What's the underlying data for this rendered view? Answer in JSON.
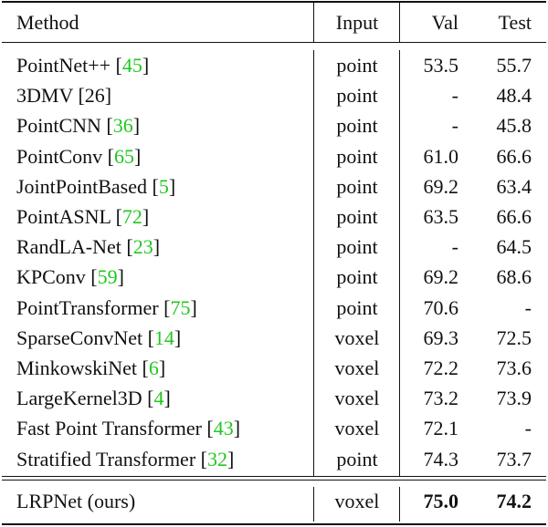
{
  "header": {
    "method": "Method",
    "input": "Input",
    "val": "Val",
    "test": "Test"
  },
  "rows": [
    {
      "method": "PointNet++",
      "cite": [
        "[",
        "45",
        "]"
      ],
      "input": "point",
      "val": "53.5",
      "test": "55.7"
    },
    {
      "method": "3DMV [26]",
      "input": "point",
      "val": "-",
      "test": "48.4"
    },
    {
      "method": "PointCNN",
      "cite": [
        "[",
        "36",
        "]"
      ],
      "input": "point",
      "val": "-",
      "test": "45.8"
    },
    {
      "method": "PointConv",
      "cite": [
        "[",
        "65",
        "]"
      ],
      "input": "point",
      "val": "61.0",
      "test": "66.6"
    },
    {
      "method": "JointPointBased",
      "cite": [
        "[",
        "5",
        "]"
      ],
      "input": "point",
      "val": "69.2",
      "test": "63.4"
    },
    {
      "method": "PointASNL",
      "cite": [
        "[",
        "72",
        "]"
      ],
      "input": "point",
      "val": "63.5",
      "test": "66.6"
    },
    {
      "method": "RandLA-Net",
      "cite": [
        "[",
        "23",
        "]"
      ],
      "input": "point",
      "val": "-",
      "test": "64.5"
    },
    {
      "method": "KPConv",
      "cite": [
        "[",
        "59",
        "]"
      ],
      "input": "point",
      "val": "69.2",
      "test": "68.6"
    },
    {
      "method": "PointTransformer",
      "cite": [
        "[",
        "75",
        "]"
      ],
      "input": "point",
      "val": "70.6",
      "test": "-"
    },
    {
      "method": "SparseConvNet",
      "cite": [
        "[",
        "14",
        "]"
      ],
      "input": "voxel",
      "val": "69.3",
      "test": "72.5"
    },
    {
      "method": "MinkowskiNet",
      "cite": [
        "[",
        "6",
        "]"
      ],
      "input": "voxel",
      "val": "72.2",
      "test": "73.6"
    },
    {
      "method": "LargeKernel3D",
      "cite": [
        "[",
        "4",
        "]"
      ],
      "input": "voxel",
      "val": "73.2",
      "test": "73.9"
    },
    {
      "method": "Fast Point Transformer",
      "cite": [
        "[",
        "43",
        "]"
      ],
      "input": "voxel",
      "val": "72.1",
      "test": "-"
    },
    {
      "method": "Stratified Transformer",
      "cite": [
        "[",
        "32",
        "]"
      ],
      "input": "point",
      "val": "74.3",
      "test": "73.7"
    }
  ],
  "ours": {
    "method": "LRPNet (ours)",
    "input": "voxel",
    "val": "75.0",
    "test": "74.2"
  }
}
